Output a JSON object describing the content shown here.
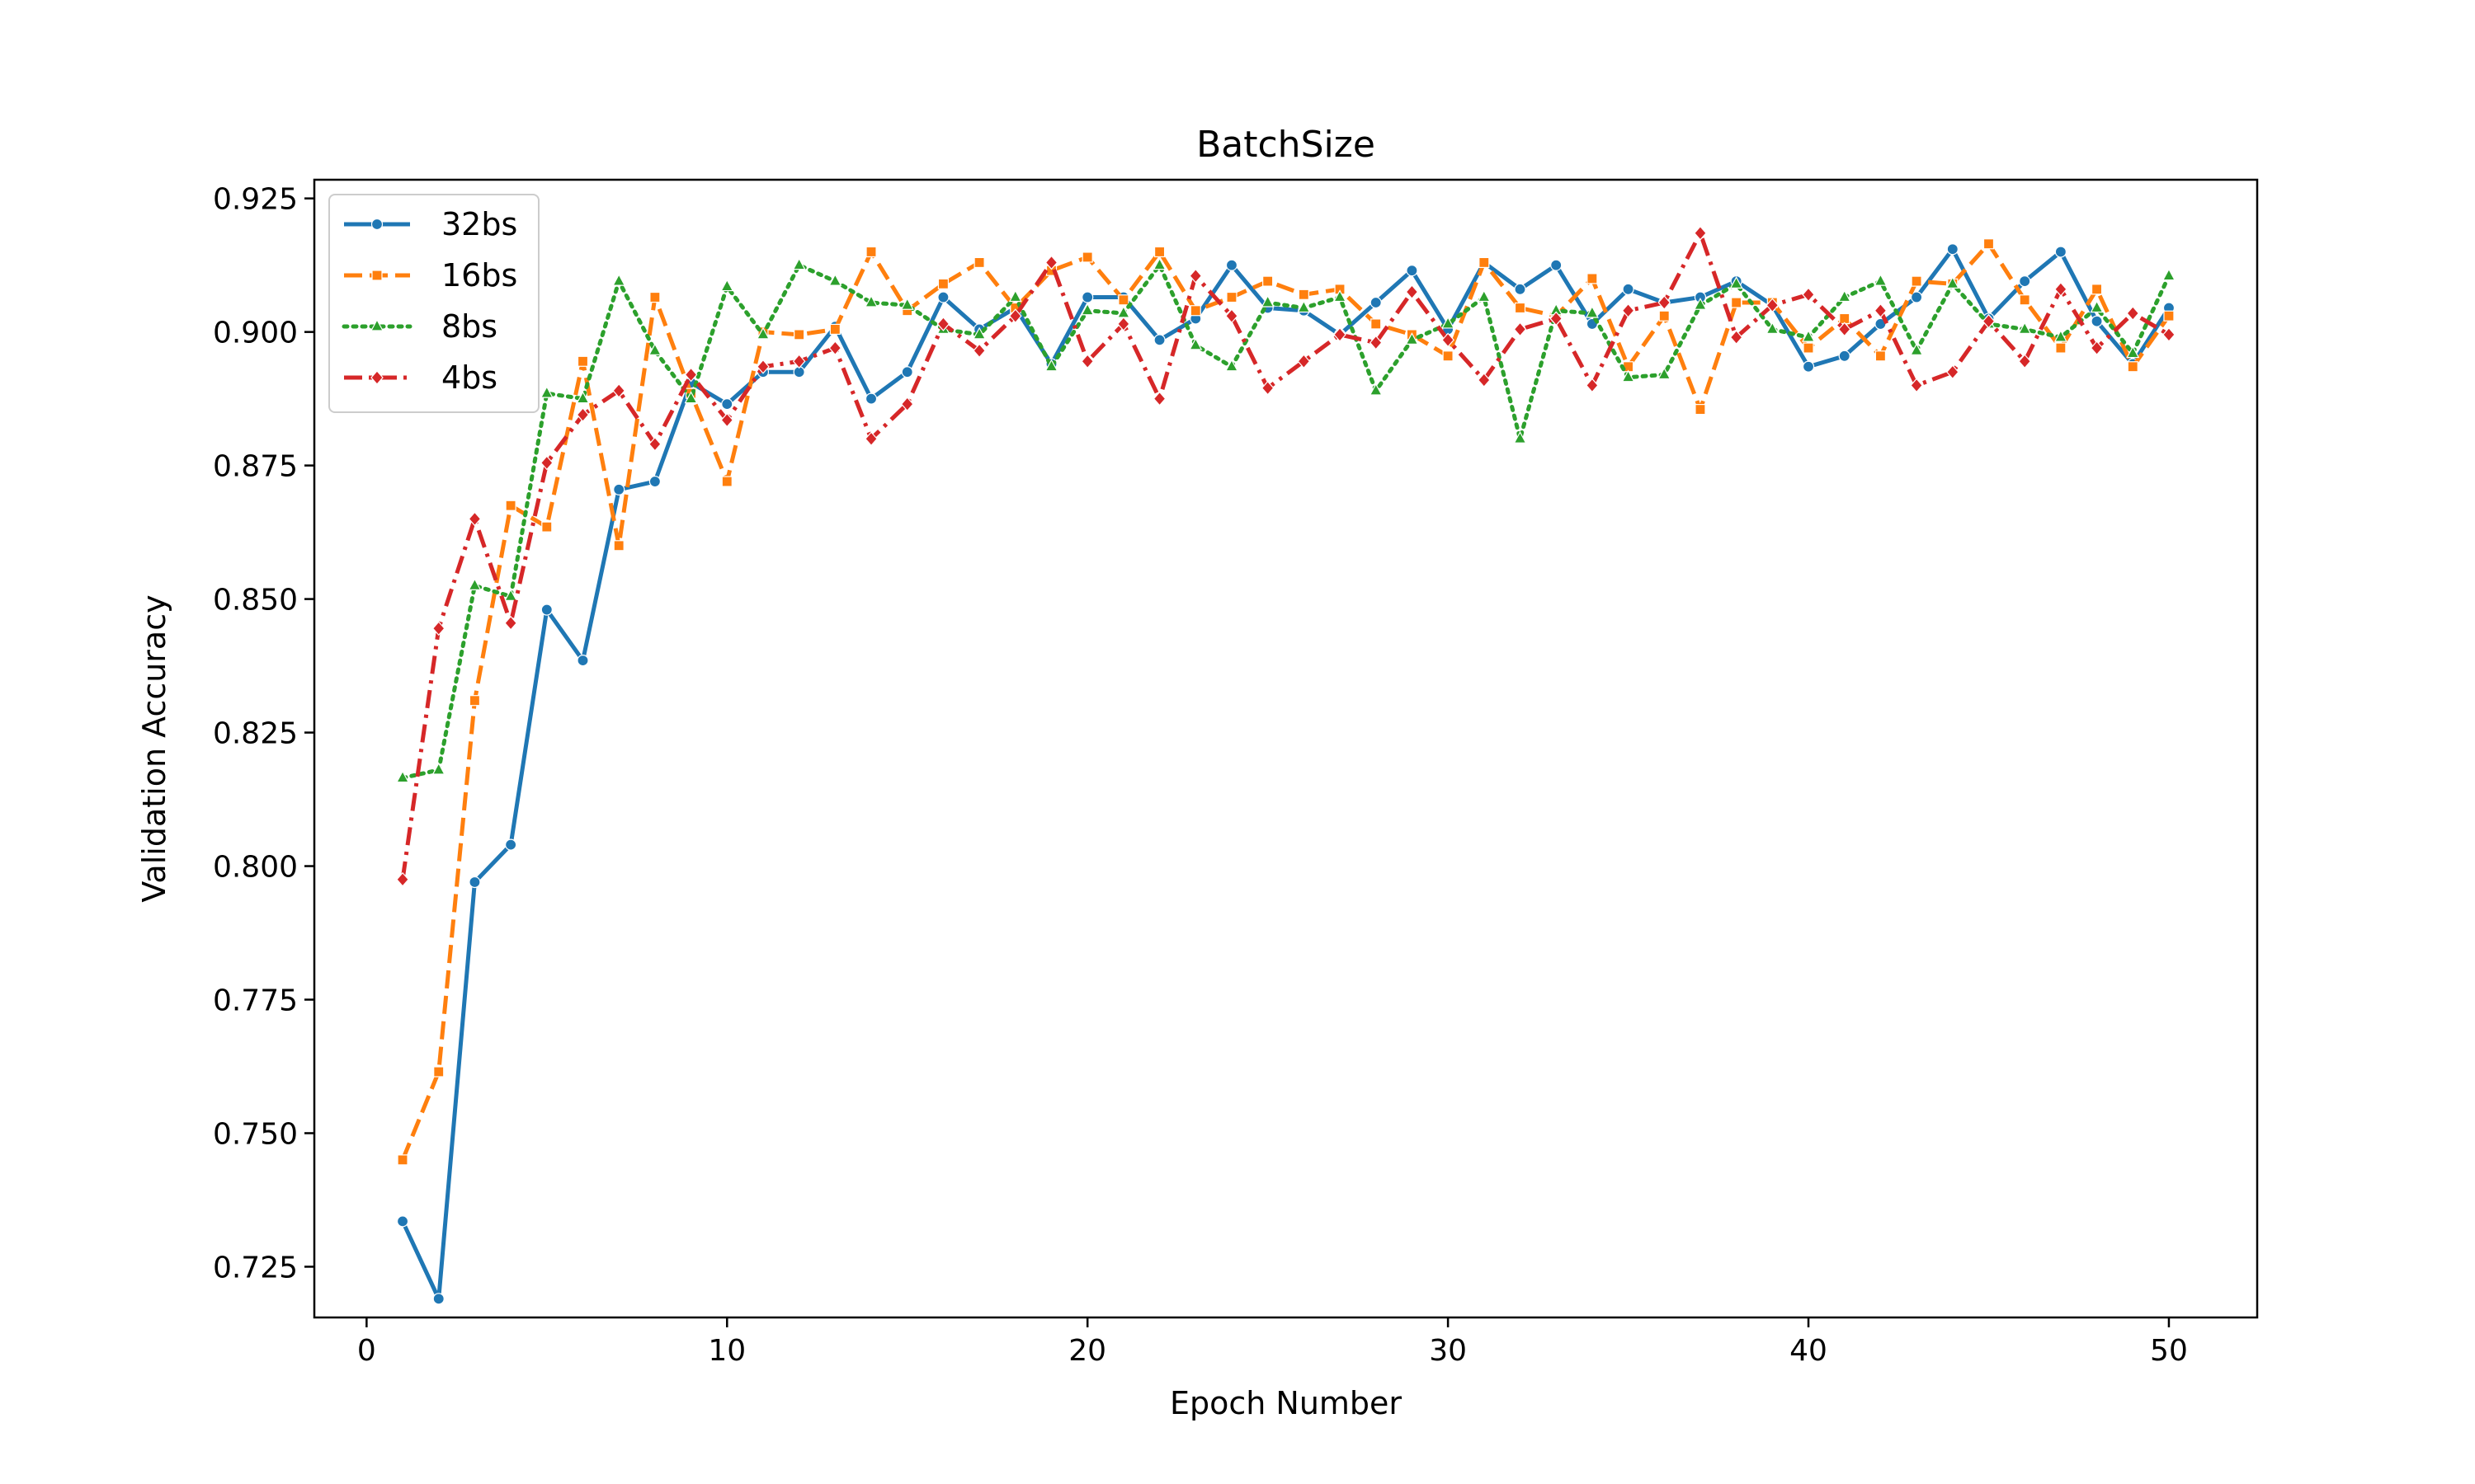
{
  "chart_data": {
    "type": "line",
    "title": "BatchSize",
    "xlabel": "Epoch Number",
    "ylabel": "Validation Accuracy",
    "xlim": [
      -1.45,
      52.45
    ],
    "ylim": [
      0.7155,
      0.9285
    ],
    "xticks": [
      0,
      10,
      20,
      30,
      40,
      50
    ],
    "yticks": [
      0.725,
      0.75,
      0.775,
      0.8,
      0.825,
      0.85,
      0.875,
      0.9,
      0.925
    ],
    "ytick_labels": [
      "0.725",
      "0.750",
      "0.775",
      "0.800",
      "0.825",
      "0.850",
      "0.875",
      "0.900",
      "0.925"
    ],
    "grid": false,
    "legend_position": "top-left",
    "x": [
      1,
      2,
      3,
      4,
      5,
      6,
      7,
      8,
      9,
      10,
      11,
      12,
      13,
      14,
      15,
      16,
      17,
      18,
      19,
      20,
      21,
      22,
      23,
      24,
      25,
      26,
      27,
      28,
      29,
      30,
      31,
      32,
      33,
      34,
      35,
      36,
      37,
      38,
      39,
      40,
      41,
      42,
      43,
      44,
      45,
      46,
      47,
      48,
      49,
      50
    ],
    "series": [
      {
        "name": "32bs",
        "color": "#1f77b4",
        "dash": "solid",
        "marker": "circle",
        "values": [
          0.7335,
          0.719,
          0.797,
          0.804,
          0.848,
          0.8385,
          0.8705,
          0.872,
          0.8905,
          0.8865,
          0.8925,
          0.8925,
          0.901,
          0.8875,
          0.8925,
          0.9065,
          0.9005,
          0.9045,
          0.894,
          0.9065,
          0.9065,
          0.8985,
          0.9025,
          0.9125,
          0.9045,
          0.904,
          0.8995,
          0.9055,
          0.9115,
          0.9005,
          0.913,
          0.908,
          0.9125,
          0.9015,
          0.908,
          0.9055,
          0.9065,
          0.9095,
          0.905,
          0.8935,
          0.8955,
          0.9015,
          0.9065,
          0.9155,
          0.9025,
          0.9095,
          0.915,
          0.902,
          0.894,
          0.9045
        ]
      },
      {
        "name": "16bs",
        "color": "#ff7f0e",
        "dash": "dashed",
        "marker": "square",
        "values": [
          0.745,
          0.7615,
          0.831,
          0.8675,
          0.8635,
          0.8945,
          0.86,
          0.9065,
          0.8885,
          0.872,
          0.9,
          0.8995,
          0.9005,
          0.915,
          0.904,
          0.909,
          0.913,
          0.9045,
          0.9115,
          0.914,
          0.906,
          0.915,
          0.904,
          0.9065,
          0.9095,
          0.907,
          0.908,
          0.9015,
          0.8995,
          0.8955,
          0.913,
          0.9045,
          0.903,
          0.91,
          0.8935,
          0.903,
          0.8855,
          0.9055,
          0.9055,
          0.897,
          0.9025,
          0.8955,
          0.9095,
          0.909,
          0.9165,
          0.906,
          0.897,
          0.908,
          0.8935,
          0.903
        ]
      },
      {
        "name": "8bs",
        "color": "#2ca02c",
        "dash": "dotted",
        "marker": "triangle",
        "values": [
          0.8165,
          0.818,
          0.8525,
          0.8505,
          0.8885,
          0.8875,
          0.9095,
          0.8965,
          0.8875,
          0.9085,
          0.8995,
          0.9125,
          0.9095,
          0.9055,
          0.905,
          0.9005,
          0.8995,
          0.9065,
          0.8935,
          0.904,
          0.9035,
          0.9125,
          0.8975,
          0.8935,
          0.9055,
          0.9045,
          0.9065,
          0.889,
          0.8985,
          0.9015,
          0.9065,
          0.88,
          0.904,
          0.9035,
          0.8915,
          0.892,
          0.905,
          0.909,
          0.9005,
          0.899,
          0.9065,
          0.9095,
          0.8965,
          0.909,
          0.9015,
          0.9005,
          0.899,
          0.9045,
          0.896,
          0.9105
        ]
      },
      {
        "name": "4bs",
        "color": "#d62728",
        "dash": "dashdot",
        "marker": "diamond",
        "values": [
          0.7975,
          0.8445,
          0.865,
          0.8455,
          0.8755,
          0.8845,
          0.889,
          0.879,
          0.892,
          0.8835,
          0.8935,
          0.8945,
          0.897,
          0.88,
          0.8865,
          0.9015,
          0.8965,
          0.903,
          0.913,
          0.8945,
          0.9015,
          0.8875,
          0.9105,
          0.903,
          0.8895,
          0.8945,
          0.8995,
          0.898,
          0.9075,
          0.8985,
          0.891,
          0.9005,
          0.9025,
          0.89,
          0.904,
          0.9055,
          0.9185,
          0.899,
          0.905,
          0.907,
          0.9005,
          0.904,
          0.89,
          0.8925,
          0.902,
          0.8945,
          0.908,
          0.897,
          0.9035,
          0.8995
        ]
      }
    ]
  }
}
